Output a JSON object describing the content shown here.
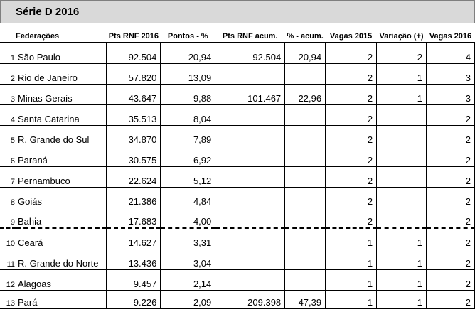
{
  "title": "Série D 2016",
  "columns": [
    "Federações",
    "Pts RNF 2016",
    "Pontos - %",
    "Pts RNF acum.",
    "% - acum.",
    "Vagas 2015",
    "Variação (+)",
    "Vagas 2016"
  ],
  "rows": [
    [
      "1",
      "São Paulo",
      "92.504",
      "20,94",
      "92.504",
      "20,94",
      "2",
      "2",
      "4"
    ],
    [
      "2",
      "Rio de Janeiro",
      "57.820",
      "13,09",
      "",
      "",
      "2",
      "1",
      "3"
    ],
    [
      "3",
      "Minas Gerais",
      "43.647",
      "9,88",
      "101.467",
      "22,96",
      "2",
      "1",
      "3"
    ],
    [
      "4",
      "Santa Catarina",
      "35.513",
      "8,04",
      "",
      "",
      "2",
      "",
      "2"
    ],
    [
      "5",
      "R. Grande do Sul",
      "34.870",
      "7,89",
      "",
      "",
      "2",
      "",
      "2"
    ],
    [
      "6",
      "Paraná",
      "30.575",
      "6,92",
      "",
      "",
      "2",
      "",
      "2"
    ],
    [
      "7",
      "Pernambuco",
      "22.624",
      "5,12",
      "",
      "",
      "2",
      "",
      "2"
    ],
    [
      "8",
      "Goiás",
      "21.386",
      "4,84",
      "",
      "",
      "2",
      "",
      "2"
    ],
    [
      "9",
      "Bahia",
      "17.683",
      "4,00",
      "",
      "",
      "2",
      "",
      "2"
    ],
    [
      "10",
      "Ceará",
      "14.627",
      "3,31",
      "",
      "",
      "1",
      "1",
      "2"
    ],
    [
      "11",
      "R. Grande do Norte",
      "13.436",
      "3,04",
      "",
      "",
      "1",
      "1",
      "2"
    ],
    [
      "12",
      "Alagoas",
      "9.457",
      "2,14",
      "",
      "",
      "1",
      "1",
      "2"
    ],
    [
      "13",
      "Pará",
      "9.226",
      "2,09",
      "209.398",
      "47,39",
      "1",
      "1",
      "2"
    ]
  ]
}
